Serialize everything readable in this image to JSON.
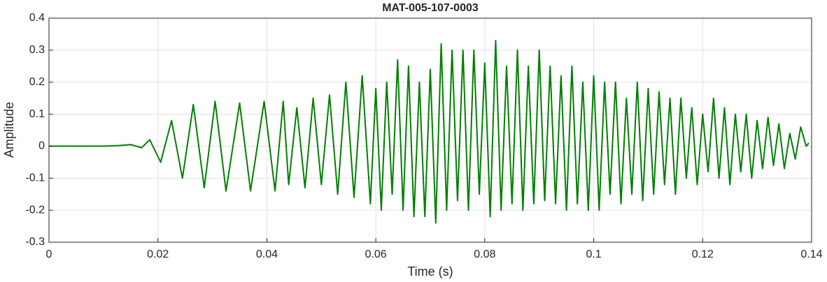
{
  "chart_data": {
    "type": "line",
    "title": "MAT-005-107-0003",
    "xlabel": "Time (s)",
    "ylabel": "Amplitude",
    "color": "#008000",
    "grid": true,
    "xlim": [
      0,
      0.14
    ],
    "xticks": [
      0,
      0.02,
      0.04,
      0.06,
      0.08,
      0.1,
      0.12,
      0.14
    ],
    "ylim": [
      -0.3,
      0.4
    ],
    "yticks": [
      -0.3,
      -0.2,
      -0.1,
      0,
      0.1,
      0.2,
      0.3,
      0.4
    ],
    "x": [
      0,
      0.005,
      0.01,
      0.013,
      0.015,
      0.017,
      0.0185,
      0.0205,
      0.0225,
      0.0245,
      0.0265,
      0.0285,
      0.0305,
      0.0325,
      0.035,
      0.037,
      0.0395,
      0.0415,
      0.043,
      0.044,
      0.0455,
      0.047,
      0.0485,
      0.05,
      0.0515,
      0.053,
      0.0545,
      0.056,
      0.0575,
      0.059,
      0.06,
      0.061,
      0.062,
      0.063,
      0.064,
      0.065,
      0.066,
      0.067,
      0.068,
      0.069,
      0.07,
      0.071,
      0.072,
      0.073,
      0.074,
      0.075,
      0.076,
      0.077,
      0.078,
      0.079,
      0.08,
      0.081,
      0.082,
      0.083,
      0.084,
      0.085,
      0.086,
      0.087,
      0.088,
      0.089,
      0.09,
      0.091,
      0.092,
      0.093,
      0.094,
      0.095,
      0.096,
      0.097,
      0.098,
      0.099,
      0.1,
      0.101,
      0.102,
      0.103,
      0.104,
      0.105,
      0.106,
      0.107,
      0.108,
      0.109,
      0.11,
      0.111,
      0.112,
      0.113,
      0.114,
      0.115,
      0.116,
      0.117,
      0.118,
      0.119,
      0.12,
      0.121,
      0.122,
      0.123,
      0.124,
      0.125,
      0.126,
      0.127,
      0.128,
      0.129,
      0.13,
      0.131,
      0.132,
      0.133,
      0.134,
      0.135,
      0.136,
      0.137,
      0.138,
      0.139,
      0.1395
    ],
    "values": [
      0,
      0,
      0,
      0.002,
      0.005,
      -0.005,
      0.02,
      -0.05,
      0.08,
      -0.1,
      0.13,
      -0.13,
      0.14,
      -0.14,
      0.135,
      -0.14,
      0.14,
      -0.14,
      0.14,
      -0.12,
      0.12,
      -0.13,
      0.15,
      -0.12,
      0.16,
      -0.15,
      0.2,
      -0.16,
      0.22,
      -0.18,
      0.18,
      -0.2,
      0.2,
      -0.15,
      0.27,
      -0.2,
      0.25,
      -0.22,
      0.2,
      -0.22,
      0.24,
      -0.24,
      0.32,
      -0.2,
      0.3,
      -0.17,
      0.3,
      -0.2,
      0.3,
      -0.15,
      0.26,
      -0.22,
      0.33,
      -0.2,
      0.25,
      -0.18,
      0.3,
      -0.2,
      0.25,
      -0.18,
      0.3,
      -0.17,
      0.25,
      -0.18,
      0.22,
      -0.2,
      0.25,
      -0.18,
      0.2,
      -0.2,
      0.22,
      -0.2,
      0.2,
      -0.15,
      0.2,
      -0.18,
      0.15,
      -0.15,
      0.2,
      -0.17,
      0.18,
      -0.15,
      0.17,
      -0.12,
      0.15,
      -0.15,
      0.15,
      -0.1,
      0.12,
      -0.12,
      0.1,
      -0.08,
      0.15,
      -0.1,
      0.12,
      -0.12,
      0.1,
      -0.08,
      0.1,
      -0.1,
      0.08,
      -0.07,
      0.09,
      -0.06,
      0.07,
      -0.07,
      0.04,
      -0.04,
      0.06,
      0,
      0.01
    ]
  }
}
